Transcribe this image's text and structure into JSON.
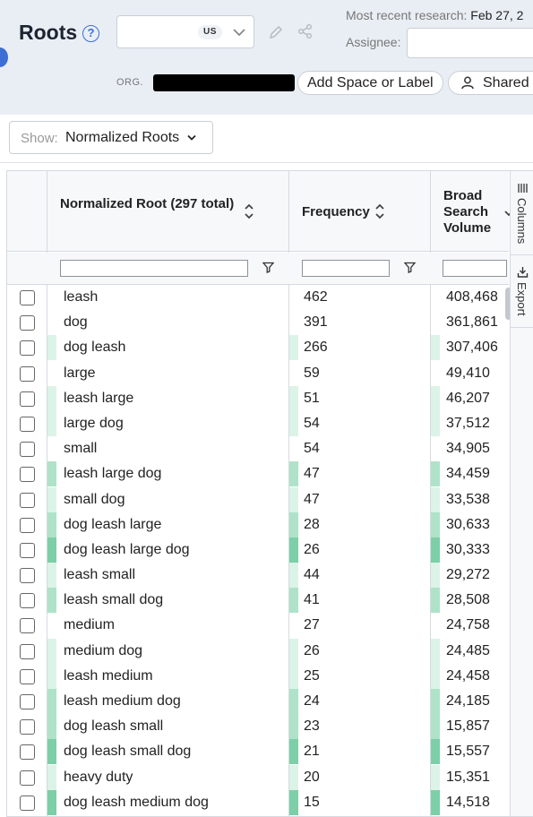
{
  "header": {
    "title": "Roots",
    "help_glyph": "?",
    "country_code": "US",
    "research_label": "Most recent research:",
    "research_date": "Feb 27, 2",
    "assignee_label": "Assignee:",
    "org_label": "ORG.",
    "add_label_button": "Add Space or Label",
    "shared_button": "Shared"
  },
  "show": {
    "label": "Show:",
    "value": "Normalized Roots"
  },
  "grid": {
    "columns": {
      "root": "Normalized Root (297 total)",
      "frequency": "Frequency",
      "volume": "Broad Search Volume"
    },
    "side_tabs": {
      "columns": "Columns",
      "export": "Export"
    },
    "heat_colors": [
      "#ffffff",
      "#dcf3e8",
      "#aee3c9",
      "#7ccfa6"
    ],
    "rows": [
      {
        "root": "leash",
        "frequency": "462",
        "volume": "408,468",
        "heat": 0
      },
      {
        "root": "dog",
        "frequency": "391",
        "volume": "361,861",
        "heat": 0
      },
      {
        "root": "dog leash",
        "frequency": "266",
        "volume": "307,406",
        "heat": 1
      },
      {
        "root": "large",
        "frequency": "59",
        "volume": "49,410",
        "heat": 0
      },
      {
        "root": "leash large",
        "frequency": "51",
        "volume": "46,207",
        "heat": 1
      },
      {
        "root": "large dog",
        "frequency": "54",
        "volume": "37,512",
        "heat": 1
      },
      {
        "root": "small",
        "frequency": "54",
        "volume": "34,905",
        "heat": 0
      },
      {
        "root": "leash large dog",
        "frequency": "47",
        "volume": "34,459",
        "heat": 2
      },
      {
        "root": "small dog",
        "frequency": "47",
        "volume": "33,538",
        "heat": 1
      },
      {
        "root": "dog leash large",
        "frequency": "28",
        "volume": "30,633",
        "heat": 2
      },
      {
        "root": "dog leash large dog",
        "frequency": "26",
        "volume": "30,333",
        "heat": 3
      },
      {
        "root": "leash small",
        "frequency": "44",
        "volume": "29,272",
        "heat": 1
      },
      {
        "root": "leash small dog",
        "frequency": "41",
        "volume": "28,508",
        "heat": 2
      },
      {
        "root": "medium",
        "frequency": "27",
        "volume": "24,758",
        "heat": 0
      },
      {
        "root": "medium dog",
        "frequency": "26",
        "volume": "24,485",
        "heat": 1
      },
      {
        "root": "leash medium",
        "frequency": "25",
        "volume": "24,458",
        "heat": 1
      },
      {
        "root": "leash medium dog",
        "frequency": "24",
        "volume": "24,185",
        "heat": 2
      },
      {
        "root": "dog leash small",
        "frequency": "23",
        "volume": "15,857",
        "heat": 2
      },
      {
        "root": "dog leash small dog",
        "frequency": "21",
        "volume": "15,557",
        "heat": 3
      },
      {
        "root": "heavy duty",
        "frequency": "20",
        "volume": "15,351",
        "heat": 1
      },
      {
        "root": "dog leash medium dog",
        "frequency": "15",
        "volume": "14,518",
        "heat": 3
      }
    ]
  }
}
